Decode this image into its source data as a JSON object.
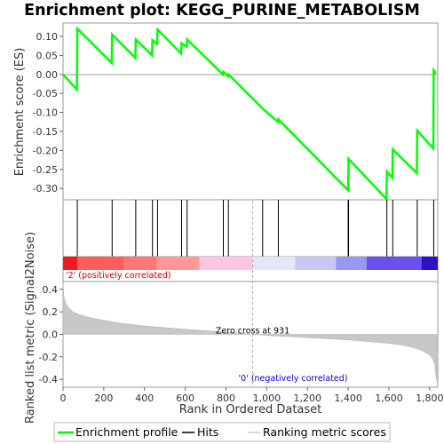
{
  "chart_data": [
    {
      "type": "line",
      "title": "Enrichment plot: KEGG_PURINE_METABOLISM",
      "ylabel": "Enrichment score (ES)",
      "xlim": [
        0,
        1840
      ],
      "ylim": [
        -0.33,
        0.135
      ],
      "yticks": [
        0.1,
        0.05,
        0.0,
        -0.05,
        -0.1,
        -0.15,
        -0.2,
        -0.25,
        -0.3
      ],
      "ytick_labels": [
        "0.10",
        "0.05",
        "0.00",
        "-0.05",
        "-0.10",
        "-0.15",
        "-0.20",
        "-0.25",
        "-0.30"
      ],
      "grid": false,
      "color": "#00ff00",
      "series": [
        {
          "name": "Enrichment profile",
          "x": [
            0,
            68,
            70,
            239,
            241,
            355,
            357,
            437,
            439,
            462,
            464,
            580,
            582,
            607,
            609,
            785,
            787,
            810,
            812,
            980,
            1055,
            1057,
            1400,
            1402,
            1588,
            1590,
            1617,
            1619,
            1737,
            1739,
            1818,
            1820,
            1830
          ],
          "y": [
            0.0,
            -0.04,
            0.12,
            0.03,
            0.105,
            0.043,
            0.092,
            0.05,
            0.09,
            0.08,
            0.118,
            0.055,
            0.082,
            0.073,
            0.092,
            0.0,
            0.007,
            -0.005,
            0.0,
            -0.09,
            -0.125,
            -0.118,
            -0.305,
            -0.222,
            -0.328,
            -0.256,
            -0.272,
            -0.197,
            -0.26,
            -0.148,
            -0.195,
            0.01,
            0.002
          ]
        }
      ]
    },
    {
      "type": "hits",
      "name": "Hits",
      "xlim": [
        0,
        1840
      ],
      "positions": [
        70,
        241,
        357,
        439,
        464,
        582,
        609,
        787,
        812,
        980,
        1057,
        1400,
        1402,
        1590,
        1619,
        1739,
        1820
      ],
      "color": "#000000"
    },
    {
      "type": "heatmap",
      "xlim": [
        0,
        1840
      ],
      "segments": [
        {
          "x0": 0,
          "x1": 70,
          "color": "#ee1c1c"
        },
        {
          "x0": 70,
          "x1": 300,
          "color": "#ff5c5c"
        },
        {
          "x0": 300,
          "x1": 460,
          "color": "#ff7878"
        },
        {
          "x0": 460,
          "x1": 670,
          "color": "#ff9898"
        },
        {
          "x0": 670,
          "x1": 930,
          "color": "#ffc4e4"
        },
        {
          "x0": 930,
          "x1": 1140,
          "color": "#e6e6fa"
        },
        {
          "x0": 1140,
          "x1": 1340,
          "color": "#c8c8f6"
        },
        {
          "x0": 1340,
          "x1": 1490,
          "color": "#9898f2"
        },
        {
          "x0": 1490,
          "x1": 1760,
          "color": "#6a50ee"
        },
        {
          "x0": 1760,
          "x1": 1840,
          "color": "#2a12c8"
        }
      ],
      "positive_label": "'2' (positively correlated)",
      "negative_label": "'0' (negatively correlated)"
    },
    {
      "type": "area",
      "xlabel": "Rank in Ordered Dataset",
      "ylabel": "Ranked list metric (Signal2Noise)",
      "xlim": [
        0,
        1840
      ],
      "ylim": [
        -0.47,
        0.47
      ],
      "xticks": [
        0,
        200,
        400,
        600,
        800,
        1000,
        1200,
        1400,
        1600,
        1800
      ],
      "xtick_labels": [
        "0",
        "200",
        "400",
        "600",
        "800",
        "1,000",
        "1,200",
        "1,400",
        "1,600",
        "1,800"
      ],
      "yticks": [
        0.4,
        0.2,
        0.0,
        -0.2,
        -0.4
      ],
      "ytick_labels": [
        "0.4",
        "0.2",
        "0.0",
        "-0.2",
        "-0.4"
      ],
      "zero_cross": 931,
      "zero_cross_label": "Zero cross at 931",
      "fill_color": "#c8c8c8",
      "x": [
        0,
        5,
        15,
        30,
        50,
        80,
        120,
        170,
        230,
        300,
        400,
        500,
        600,
        700,
        800,
        931,
        1000,
        1100,
        1200,
        1300,
        1400,
        1500,
        1600,
        1660,
        1700,
        1750,
        1780,
        1800,
        1815,
        1825,
        1830,
        1835
      ],
      "values": [
        0.45,
        0.33,
        0.27,
        0.23,
        0.2,
        0.175,
        0.155,
        0.135,
        0.115,
        0.095,
        0.075,
        0.06,
        0.045,
        0.032,
        0.02,
        0.0,
        -0.01,
        -0.02,
        -0.03,
        -0.04,
        -0.05,
        -0.065,
        -0.08,
        -0.095,
        -0.11,
        -0.135,
        -0.16,
        -0.185,
        -0.22,
        -0.27,
        -0.35,
        -0.42
      ]
    }
  ],
  "legend": {
    "items": [
      {
        "label": "Enrichment profile",
        "color": "#00ff00"
      },
      {
        "label": "Hits",
        "color": "#000000"
      },
      {
        "label": "Ranking metric scores",
        "color": "#c8c8c8"
      }
    ]
  }
}
